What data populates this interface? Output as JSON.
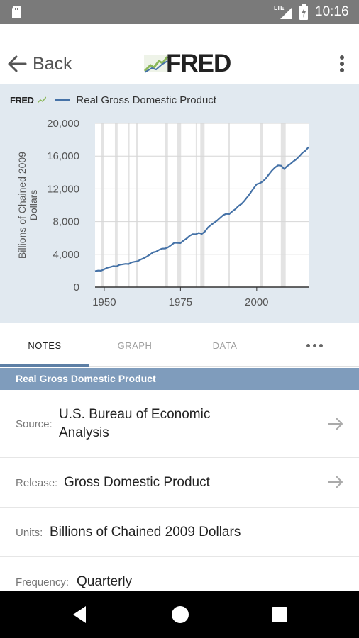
{
  "status_bar": {
    "network": "LTE",
    "time": "10:16"
  },
  "app_bar": {
    "back_label": "Back",
    "logo_text": "FRED"
  },
  "chart_header": {
    "logo_text": "FRED",
    "series_name": "Real Gross Domestic Product"
  },
  "chart_data": {
    "type": "line",
    "title": "",
    "ylabel": "Billions of Chained 2009 Dollars",
    "xlabel": "",
    "xlim": [
      1947,
      2017.25
    ],
    "ylim": [
      0,
      20000
    ],
    "x_ticks": [
      "1950",
      "1975",
      "2000"
    ],
    "y_ticks": [
      "0",
      "4,000",
      "8,000",
      "12,000",
      "16,000",
      "20,000"
    ],
    "grid": true,
    "recession_shading": true,
    "recessions": [
      [
        1948.9,
        1949.8
      ],
      [
        1953.5,
        1954.4
      ],
      [
        1957.7,
        1958.3
      ],
      [
        1960.3,
        1961.1
      ],
      [
        1969.9,
        1970.9
      ],
      [
        1973.9,
        1975.2
      ],
      [
        1980.0,
        1980.5
      ],
      [
        1981.5,
        1982.9
      ],
      [
        1990.5,
        1991.2
      ],
      [
        2001.2,
        2001.9
      ],
      [
        2007.9,
        2009.5
      ]
    ],
    "series": [
      {
        "name": "Real Gross Domestic Product",
        "color": "#4572a7",
        "x": [
          1947,
          1948,
          1949,
          1950,
          1951,
          1952,
          1953,
          1954,
          1955,
          1956,
          1957,
          1958,
          1959,
          1960,
          1961,
          1962,
          1963,
          1964,
          1965,
          1966,
          1967,
          1968,
          1969,
          1970,
          1971,
          1972,
          1973,
          1974,
          1975,
          1976,
          1977,
          1978,
          1979,
          1980,
          1981,
          1982,
          1983,
          1984,
          1985,
          1986,
          1987,
          1988,
          1989,
          1990,
          1991,
          1992,
          1993,
          1994,
          1995,
          1996,
          1997,
          1998,
          1999,
          2000,
          2001,
          2002,
          2003,
          2004,
          2005,
          2006,
          2007,
          2008,
          2009,
          2010,
          2011,
          2012,
          2013,
          2014,
          2015,
          2016,
          2017
        ],
        "y": [
          1940,
          2020,
          2000,
          2180,
          2360,
          2450,
          2560,
          2520,
          2720,
          2780,
          2840,
          2810,
          3020,
          3100,
          3180,
          3380,
          3530,
          3740,
          3970,
          4240,
          4340,
          4550,
          4700,
          4720,
          4880,
          5140,
          5420,
          5390,
          5380,
          5680,
          5930,
          6260,
          6460,
          6450,
          6620,
          6490,
          6790,
          7280,
          7590,
          7860,
          8130,
          8470,
          8790,
          8950,
          8930,
          9260,
          9520,
          9900,
          10160,
          10550,
          11020,
          11530,
          12070,
          12560,
          12680,
          12910,
          13270,
          13770,
          14230,
          14610,
          14870,
          14830,
          14420,
          14780,
          15020,
          15350,
          15610,
          15980,
          16400,
          16660,
          17100
        ]
      }
    ]
  },
  "tabs": [
    {
      "label": "NOTES",
      "active": true
    },
    {
      "label": "GRAPH",
      "active": false
    },
    {
      "label": "DATA",
      "active": false
    }
  ],
  "notes": {
    "header": "Real Gross Domestic Product",
    "rows": [
      {
        "label": "Source:",
        "value_line1": "U.S. Bureau of Economic",
        "value_line2": "Analysis",
        "has_arrow": true
      },
      {
        "label": "Release:",
        "value": "Gross Domestic Product",
        "has_arrow": true
      },
      {
        "label": "Units:",
        "value": "Billions of Chained 2009 Dollars",
        "has_arrow": false
      },
      {
        "label": "Frequency:",
        "value": "Quarterly",
        "has_arrow": false
      }
    ]
  },
  "colors": {
    "status_bar": "#7a7a7a",
    "chart_bg": "#e1e9f0",
    "series_line": "#4572a7",
    "recession_band": "#e3e3e3",
    "notes_header": "#7f9cbc",
    "tab_indicator": "#5d7fa5"
  },
  "icons": {
    "status": [
      "sd-card-icon",
      "signal-icon",
      "battery-icon"
    ],
    "app_bar": [
      "arrow-back-icon",
      "fred-logo-icon",
      "more-vert-icon"
    ],
    "notes": [
      "arrow-forward-icon"
    ],
    "nav": [
      "back-triangle-icon",
      "home-circle-icon",
      "recents-square-icon"
    ]
  }
}
